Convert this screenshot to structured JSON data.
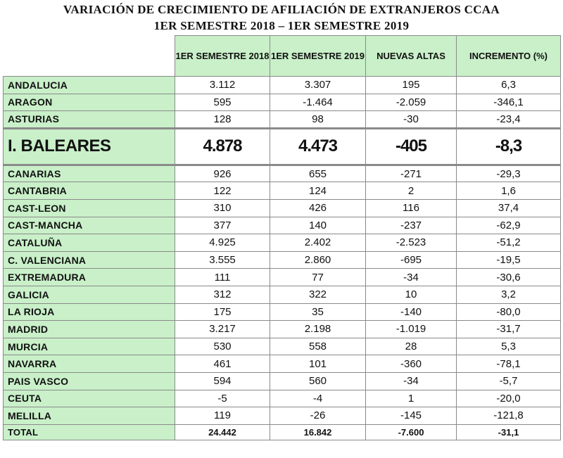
{
  "title": {
    "line1": "VARIACIÓN DE CRECIMIENTO DE AFILIACIÓN DE EXTRANJEROS CCAA",
    "line2": "1ER SEMESTRE 2018 – 1ER SEMESTRE 2019"
  },
  "headers": {
    "col1": "1ER SEMESTRE 2018",
    "col2": "1ER SEMESTRE 2019",
    "col3": "NUEVAS ALTAS",
    "col4": "INCREMENTO (%)"
  },
  "rows": [
    {
      "name": "ANDALUCIA",
      "s2018": "3.112",
      "s2019": "3.307",
      "altas": "195",
      "inc": "6,3"
    },
    {
      "name": "ARAGON",
      "s2018": "595",
      "s2019": "-1.464",
      "altas": "-2.059",
      "inc": "-346,1"
    },
    {
      "name": "ASTURIAS",
      "s2018": "128",
      "s2019": "98",
      "altas": "-30",
      "inc": "-23,4"
    },
    {
      "name": "I. BALEARES",
      "s2018": "4.878",
      "s2019": "4.473",
      "altas": "-405",
      "inc": "-8,3"
    },
    {
      "name": "CANARIAS",
      "s2018": "926",
      "s2019": "655",
      "altas": "-271",
      "inc": "-29,3"
    },
    {
      "name": "CANTABRIA",
      "s2018": "122",
      "s2019": "124",
      "altas": "2",
      "inc": "1,6"
    },
    {
      "name": "CAST-LEON",
      "s2018": "310",
      "s2019": "426",
      "altas": "116",
      "inc": "37,4"
    },
    {
      "name": "CAST-MANCHA",
      "s2018": "377",
      "s2019": "140",
      "altas": "-237",
      "inc": "-62,9"
    },
    {
      "name": "CATALUÑA",
      "s2018": "4.925",
      "s2019": "2.402",
      "altas": "-2.523",
      "inc": "-51,2"
    },
    {
      "name": "C. VALENCIANA",
      "s2018": "3.555",
      "s2019": "2.860",
      "altas": "-695",
      "inc": "-19,5"
    },
    {
      "name": "EXTREMADURA",
      "s2018": "111",
      "s2019": "77",
      "altas": "-34",
      "inc": "-30,6"
    },
    {
      "name": "GALICIA",
      "s2018": "312",
      "s2019": "322",
      "altas": "10",
      "inc": "3,2"
    },
    {
      "name": "LA RIOJA",
      "s2018": "175",
      "s2019": "35",
      "altas": "-140",
      "inc": "-80,0"
    },
    {
      "name": "MADRID",
      "s2018": "3.217",
      "s2019": "2.198",
      "altas": "-1.019",
      "inc": "-31,7"
    },
    {
      "name": "MURCIA",
      "s2018": "530",
      "s2019": "558",
      "altas": "28",
      "inc": "5,3"
    },
    {
      "name": "NAVARRA",
      "s2018": "461",
      "s2019": "101",
      "altas": "-360",
      "inc": "-78,1"
    },
    {
      "name": "PAIS VASCO",
      "s2018": "594",
      "s2019": "560",
      "altas": "-34",
      "inc": "-5,7"
    },
    {
      "name": "CEUTA",
      "s2018": "-5",
      "s2019": "-4",
      "altas": "1",
      "inc": "-20,0"
    },
    {
      "name": "MELILLA",
      "s2018": "119",
      "s2019": "-26",
      "altas": "-145",
      "inc": "-121,8"
    }
  ],
  "total": {
    "name": "TOTAL",
    "s2018": "24.442",
    "s2019": "16.842",
    "altas": "-7.600",
    "inc": "-31,1"
  },
  "colors": {
    "label_bg": "#c9f0c9",
    "border": "#8a8a8a"
  }
}
